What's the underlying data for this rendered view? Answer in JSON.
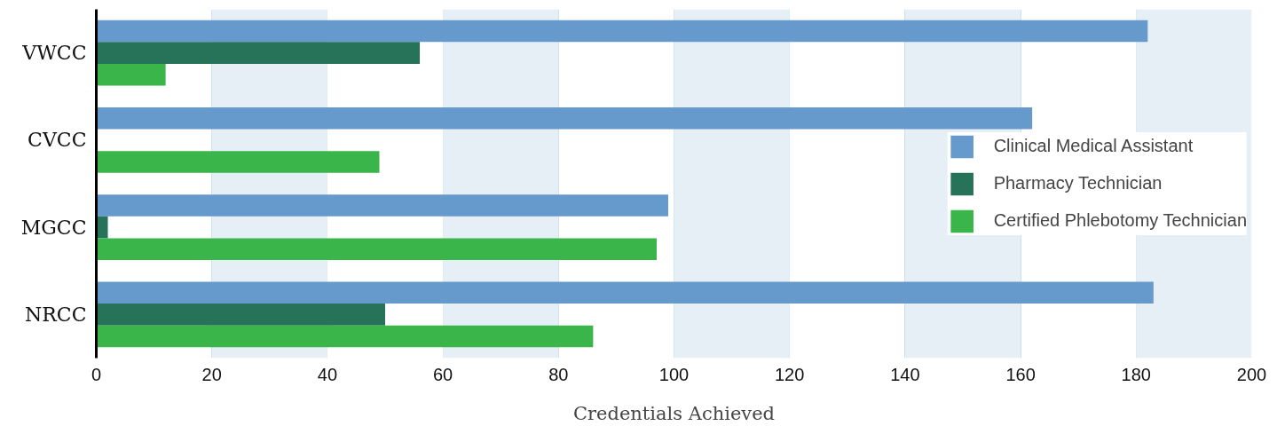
{
  "chart_data": {
    "type": "bar",
    "orientation": "horizontal",
    "xlabel": "Credentials Achieved",
    "categories": [
      "VWCC",
      "CVCC",
      "MGCC",
      "NRCC"
    ],
    "series": [
      {
        "name": "Clinical Medical Assistant",
        "color": "#6699cc",
        "values": [
          182,
          162,
          99,
          183
        ]
      },
      {
        "name": "Pharmacy Technician",
        "color": "#26735a",
        "values": [
          56,
          null,
          2,
          50
        ]
      },
      {
        "name": "Certified Phlebotomy Technician",
        "color": "#39b54a",
        "values": [
          12,
          49,
          97,
          86
        ]
      }
    ],
    "xlim": [
      0,
      200
    ],
    "xticks": [
      0,
      20,
      40,
      60,
      80,
      100,
      120,
      140,
      160,
      180,
      200
    ],
    "bands": [
      {
        "axis": "x",
        "from": 20,
        "to": 40,
        "color": "#e6eff5"
      },
      {
        "axis": "x",
        "from": 60,
        "to": 80,
        "color": "#e6eff5"
      },
      {
        "axis": "x",
        "from": 100,
        "to": 120,
        "color": "#e6eff5"
      },
      {
        "axis": "x",
        "from": 140,
        "to": 160,
        "color": "#e6eff5"
      },
      {
        "axis": "x",
        "from": 180,
        "to": 200,
        "color": "#e6eff5"
      }
    ],
    "grid": "x",
    "legend": "right"
  }
}
